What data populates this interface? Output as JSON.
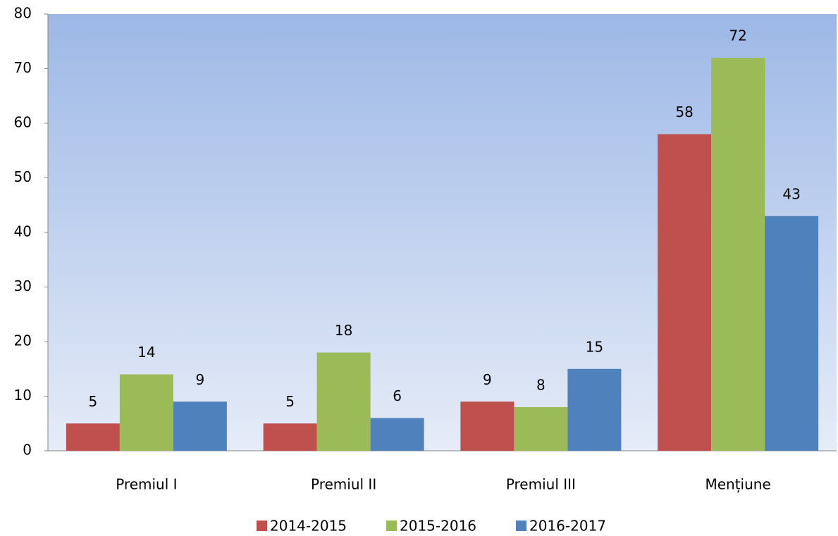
{
  "chart_data": {
    "type": "bar",
    "categories": [
      "Premiul I",
      "Premiul II",
      "Premiul III",
      "Mențiune"
    ],
    "series": [
      {
        "name": "2014-2015",
        "color": "#c0504d",
        "values": [
          5,
          5,
          9,
          58
        ]
      },
      {
        "name": "2015-2016",
        "color": "#9bbb59",
        "values": [
          14,
          18,
          8,
          72
        ]
      },
      {
        "name": "2016-2017",
        "color": "#4f81bd",
        "values": [
          9,
          6,
          15,
          43
        ]
      }
    ],
    "ylim": [
      0,
      80
    ],
    "yticks": [
      0,
      10,
      20,
      30,
      40,
      50,
      60,
      70,
      80
    ],
    "grid": false,
    "legend": "bottom"
  }
}
